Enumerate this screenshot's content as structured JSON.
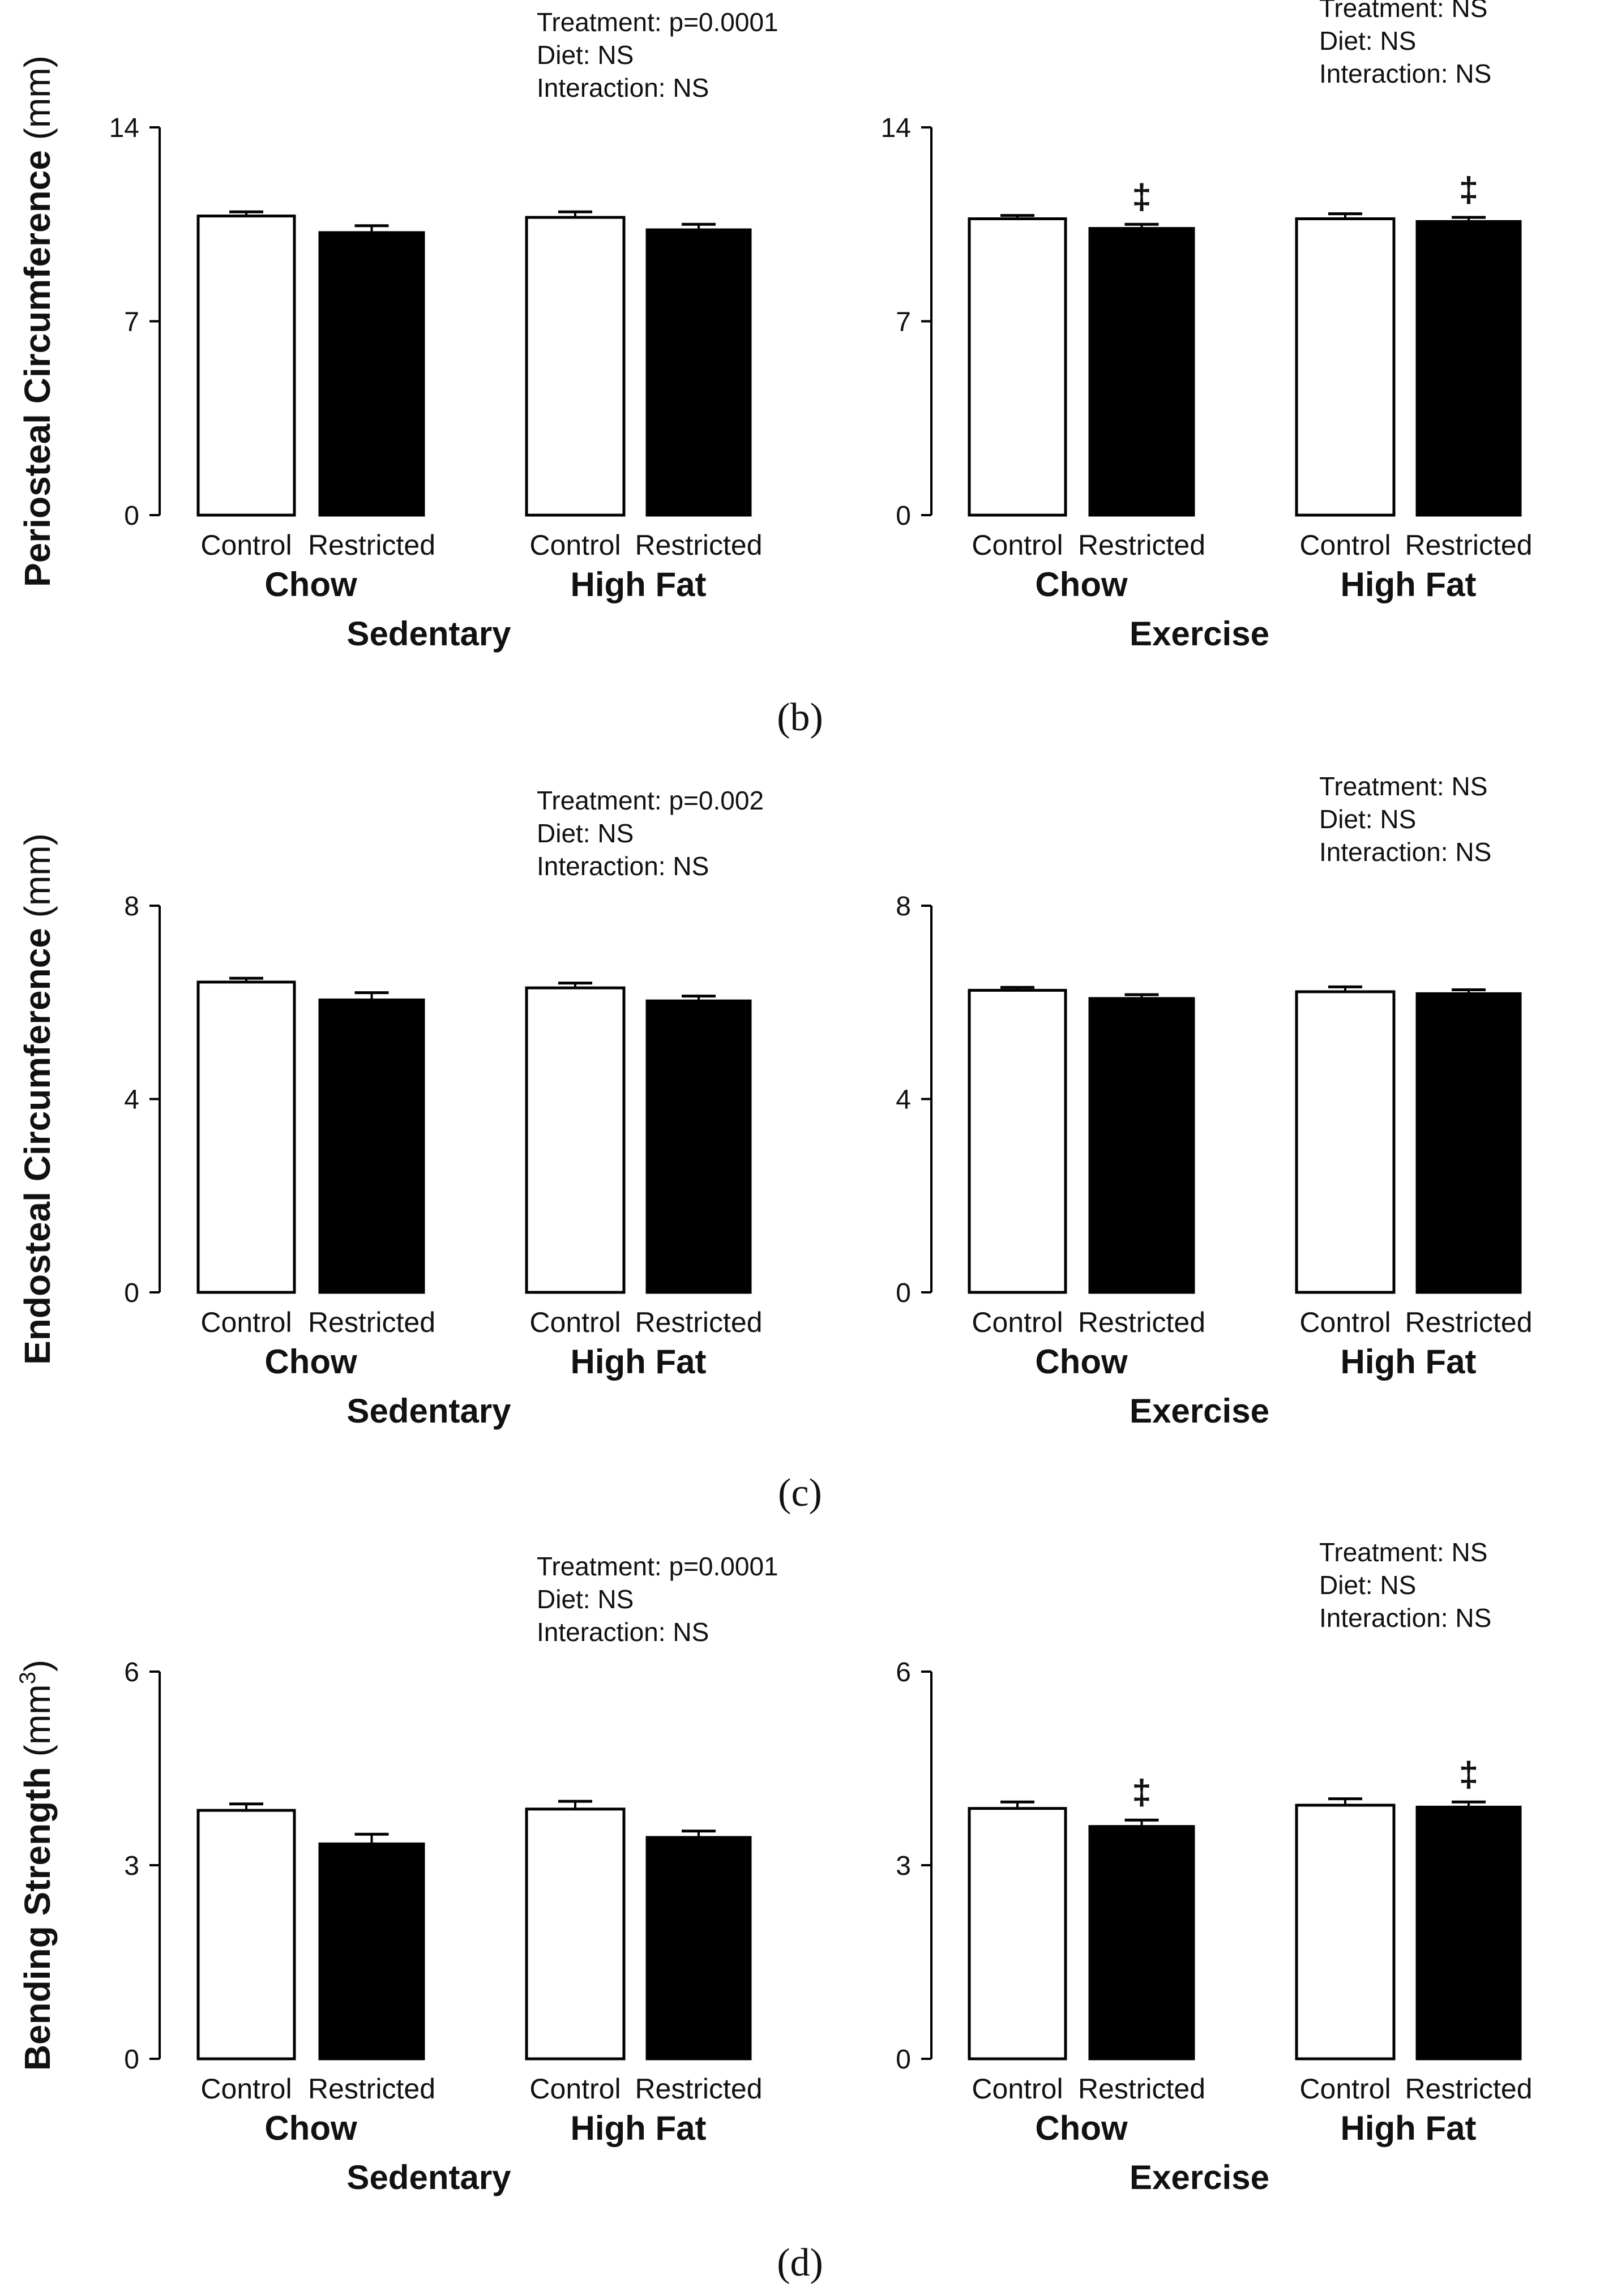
{
  "figure": {
    "sublabels": [
      "(b)",
      "(c)",
      "(d)"
    ]
  },
  "colors": {
    "control_fill": "#ffffff",
    "restricted_fill": "#000000",
    "axis": "#000000",
    "text": "#111111"
  },
  "chart_data": [
    {
      "type": "bar",
      "panel": "b-sedentary",
      "ylabel": "Periosteal Circumference (mm)",
      "ylim": [
        0,
        14
      ],
      "yticks": [
        0,
        7,
        14
      ],
      "group_title": "Sedentary",
      "groups": [
        "Chow",
        "High Fat"
      ],
      "categories": [
        "Control",
        "Restricted"
      ],
      "series": [
        {
          "name": "Control",
          "values": [
            10.8,
            10.75
          ],
          "errors": [
            0.15,
            0.2
          ]
        },
        {
          "name": "Restricted",
          "values": [
            10.2,
            10.3
          ],
          "errors": [
            0.25,
            0.2
          ]
        }
      ],
      "markers": [
        "",
        "",
        "",
        ""
      ],
      "stats": [
        "Treatment: p=0.0001",
        "Diet: NS",
        "Interaction: NS"
      ]
    },
    {
      "type": "bar",
      "panel": "b-exercise",
      "ylabel": "",
      "ylim": [
        0,
        14
      ],
      "yticks": [
        0,
        7,
        14
      ],
      "group_title": "Exercise",
      "groups": [
        "Chow",
        "High Fat"
      ],
      "categories": [
        "Control",
        "Restricted"
      ],
      "series": [
        {
          "name": "Control",
          "values": [
            10.7,
            10.7
          ],
          "errors": [
            0.12,
            0.18
          ]
        },
        {
          "name": "Restricted",
          "values": [
            10.35,
            10.6
          ],
          "errors": [
            0.15,
            0.15
          ]
        }
      ],
      "markers": [
        "",
        "‡",
        "",
        "‡"
      ],
      "stats": [
        "Treatment: NS",
        "Diet: NS",
        "Interaction: NS"
      ]
    },
    {
      "type": "bar",
      "panel": "c-sedentary",
      "ylabel": "Endosteal Circumference (mm)",
      "ylim": [
        0,
        8
      ],
      "yticks": [
        0,
        4,
        8
      ],
      "group_title": "Sedentary",
      "groups": [
        "Chow",
        "High Fat"
      ],
      "categories": [
        "Control",
        "Restricted"
      ],
      "series": [
        {
          "name": "Control",
          "values": [
            6.42,
            6.3
          ],
          "errors": [
            0.08,
            0.1
          ]
        },
        {
          "name": "Restricted",
          "values": [
            6.05,
            6.03
          ],
          "errors": [
            0.15,
            0.1
          ]
        }
      ],
      "markers": [
        "",
        "",
        "",
        ""
      ],
      "stats": [
        "Treatment: p=0.002",
        "Diet: NS",
        "Interaction: NS"
      ]
    },
    {
      "type": "bar",
      "panel": "c-exercise",
      "ylabel": "",
      "ylim": [
        0,
        8
      ],
      "yticks": [
        0,
        4,
        8
      ],
      "group_title": "Exercise",
      "groups": [
        "Chow",
        "High Fat"
      ],
      "categories": [
        "Control",
        "Restricted"
      ],
      "series": [
        {
          "name": "Control",
          "values": [
            6.25,
            6.22
          ],
          "errors": [
            0.06,
            0.1
          ]
        },
        {
          "name": "Restricted",
          "values": [
            6.08,
            6.18
          ],
          "errors": [
            0.08,
            0.08
          ]
        }
      ],
      "markers": [
        "",
        "",
        "",
        ""
      ],
      "stats": [
        "Treatment: NS",
        "Diet: NS",
        "Interaction: NS"
      ]
    },
    {
      "type": "bar",
      "panel": "d-sedentary",
      "ylabel": "Bending Strength",
      "ylabel_unit": "(mm",
      "ylabel_sup": "3",
      "ylabel_close": ")",
      "ylim": [
        0,
        6
      ],
      "yticks": [
        0,
        3,
        6
      ],
      "group_title": "Sedentary",
      "groups": [
        "Chow",
        "High Fat"
      ],
      "categories": [
        "Control",
        "Restricted"
      ],
      "series": [
        {
          "name": "Control",
          "values": [
            3.85,
            3.87
          ],
          "errors": [
            0.1,
            0.12
          ]
        },
        {
          "name": "Restricted",
          "values": [
            3.33,
            3.43
          ],
          "errors": [
            0.15,
            0.1
          ]
        }
      ],
      "markers": [
        "",
        "",
        "",
        ""
      ],
      "stats": [
        "Treatment: p=0.0001",
        "Diet: NS",
        "Interaction: NS"
      ]
    },
    {
      "type": "bar",
      "panel": "d-exercise",
      "ylabel": "",
      "ylim": [
        0,
        6
      ],
      "yticks": [
        0,
        3,
        6
      ],
      "group_title": "Exercise",
      "groups": [
        "Chow",
        "High Fat"
      ],
      "categories": [
        "Control",
        "Restricted"
      ],
      "series": [
        {
          "name": "Control",
          "values": [
            3.88,
            3.93
          ],
          "errors": [
            0.1,
            0.1
          ]
        },
        {
          "name": "Restricted",
          "values": [
            3.6,
            3.9
          ],
          "errors": [
            0.1,
            0.08
          ]
        }
      ],
      "markers": [
        "",
        "‡",
        "",
        "‡"
      ],
      "stats": [
        "Treatment: NS",
        "Diet: NS",
        "Interaction: NS"
      ]
    }
  ]
}
